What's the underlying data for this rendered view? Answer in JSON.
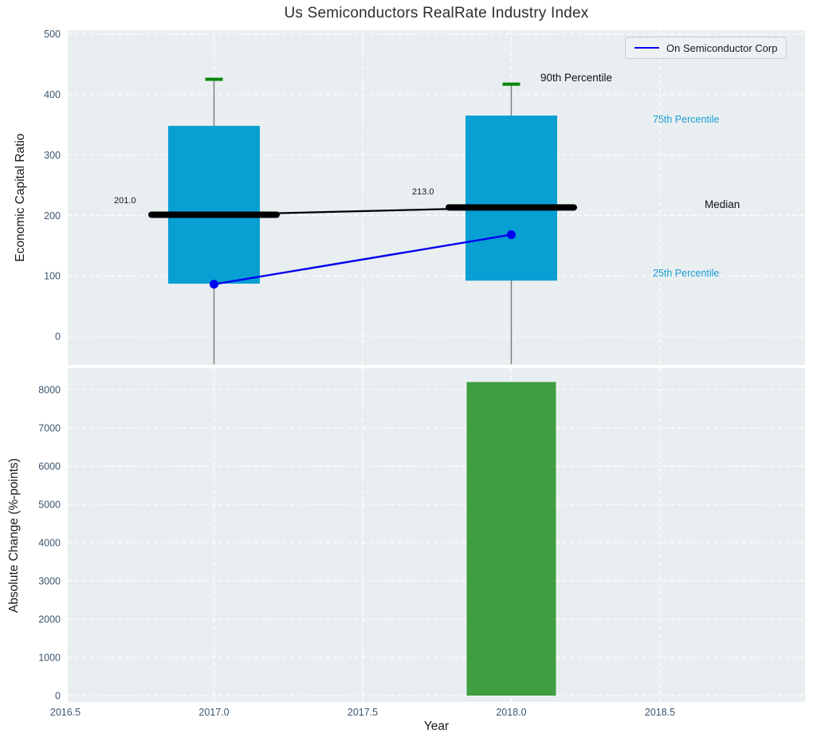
{
  "title": "Us Semiconductors RealRate Industry Index",
  "legend": {
    "label": "On Semiconductor Corp"
  },
  "annotations": {
    "p90_label": "90th Percentile",
    "p75_label": "75th Percentile",
    "median_label": "Median",
    "p25_label": "25th Percentile",
    "median_value_labels": [
      "201.0",
      "213.0"
    ]
  },
  "colors": {
    "bar_cyan": "#089fd3",
    "bar_green": "#3f9e42",
    "p90_marker_green": "#0a850a",
    "company_blue": "#0000f0",
    "median_black": "#000000",
    "whisker_gray": "#7a7a7a",
    "plot_bg": "#e9eef0",
    "grid_white": "#ffffff",
    "tick_label": "#3d566e",
    "percentile_label_cyan": "#1a9fd4"
  },
  "chart_data": [
    {
      "type": "box-percentile-with-line",
      "title": "Us Semiconductors RealRate Industry Index",
      "ylabel": "Economic Capital Ratio",
      "x": [
        2017,
        2018
      ],
      "p90": [
        425,
        417
      ],
      "p75": [
        348,
        365
      ],
      "median": [
        201.0,
        213.0
      ],
      "p25": [
        87,
        92
      ],
      "company": {
        "name": "On Semiconductor Corp",
        "values": [
          86,
          168
        ]
      },
      "yticks": [
        0,
        100,
        200,
        300,
        400,
        500
      ],
      "ylim": [
        -47,
        505
      ],
      "grid": true,
      "legend_position": "top-right"
    },
    {
      "type": "bar",
      "ylabel": "Absolute Change (%-points)",
      "xlabel": "Year",
      "x": [
        2018
      ],
      "values": [
        8200
      ],
      "yticks": [
        0,
        1000,
        2000,
        3000,
        4000,
        5000,
        6000,
        7000,
        8000
      ],
      "xticks": [
        2016.5,
        2017.0,
        2017.5,
        2018.0,
        2018.5
      ],
      "xlim": [
        2016.49,
        2018.99
      ],
      "ylim": [
        0,
        8560
      ],
      "grid": true
    }
  ]
}
